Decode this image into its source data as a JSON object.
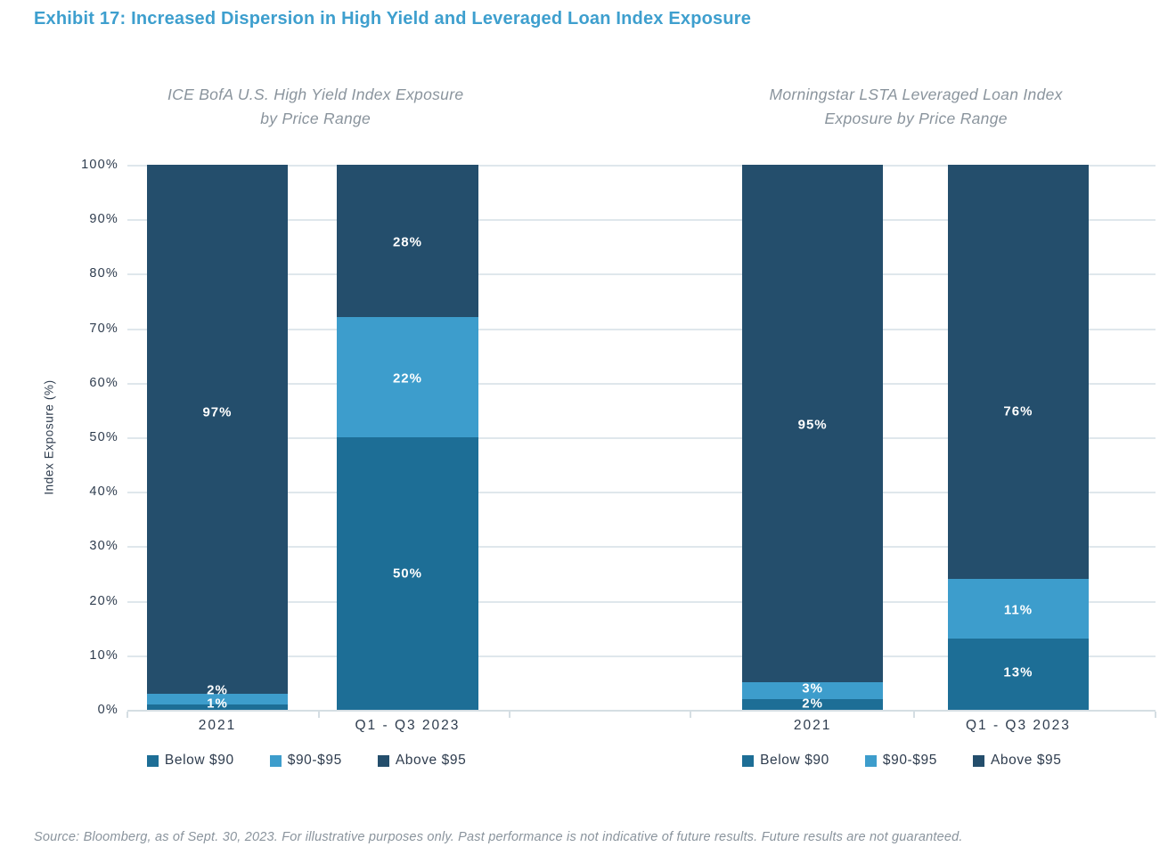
{
  "page": {
    "title": "Exhibit 17: Increased Dispersion in High Yield and Leveraged Loan Index Exposure",
    "source": "Source: Bloomberg, as of Sept. 30, 2023. For illustrative purposes only. Past performance is not indicative of future results. Future results are not guaranteed."
  },
  "colors": {
    "title": "#3E9FCE",
    "axis_text": "#2E3C4E",
    "muted_text": "#8A949D",
    "gridline": "#DFE7EC",
    "axis_line": "#D5DEE3",
    "bar_label_text": "#FFFFFF",
    "below_90": "#1D6E96",
    "90_95": "#3D9DCC",
    "above_95": "#244E6C"
  },
  "axis": {
    "ylabel": "Index Exposure (%)",
    "yticks": [
      "100%",
      "90%",
      "80%",
      "70%",
      "60%",
      "50%",
      "40%",
      "30%",
      "20%",
      "10%",
      "0%"
    ],
    "ylim": [
      0,
      100
    ]
  },
  "legend": {
    "items": [
      {
        "label": "Below $90",
        "color": "#1D6E96"
      },
      {
        "label": "$90-$95",
        "color": "#3D9DCC"
      },
      {
        "label": "Above $95",
        "color": "#244E6C"
      }
    ]
  },
  "chart_data": [
    {
      "type": "bar",
      "stacked": true,
      "title": "ICE BofA U.S. High Yield Index Exposure by Price Range",
      "title_lines": [
        "ICE BofA U.S. High Yield Index Exposure",
        "by Price Range"
      ],
      "categories": [
        "2021",
        "Q1 - Q3 2023"
      ],
      "series": [
        {
          "name": "Below $90",
          "color": "#1D6E96",
          "values": [
            1,
            50
          ],
          "labels": [
            "1%",
            "50%"
          ]
        },
        {
          "name": "$90-$95",
          "color": "#3D9DCC",
          "values": [
            2,
            22
          ],
          "labels": [
            "2%",
            "22%"
          ]
        },
        {
          "name": "Above $95",
          "color": "#244E6C",
          "values": [
            97,
            28
          ],
          "labels": [
            "97%",
            "28%"
          ]
        }
      ],
      "ylabel": "Index Exposure (%)",
      "ylim": [
        0,
        100
      ],
      "grid": true,
      "legend_position": "bottom",
      "layout": {
        "bar_x_pct": [
          1.9,
          20.4
        ],
        "bar_w_pct": 13.7,
        "subtitle_x_pct": 18.3,
        "legend_x_pct": 1.9,
        "axis_tick_x_pct": [
          0,
          18.6,
          37.2
        ],
        "label_y_pct": [
          [
            1.1,
            3.6,
            54.6
          ],
          [
            25.0,
            60.8,
            85.8
          ]
        ]
      }
    },
    {
      "type": "bar",
      "stacked": true,
      "title": "Morningstar LSTA Leveraged Loan Index Exposure by Price Range",
      "title_lines": [
        "Morningstar LSTA Leveraged Loan Index",
        "Exposure by Price Range"
      ],
      "categories": [
        "2021",
        "Q1 - Q3 2023"
      ],
      "series": [
        {
          "name": "Below $90",
          "color": "#1D6E96",
          "values": [
            2,
            13
          ],
          "labels": [
            "2%",
            "13%"
          ]
        },
        {
          "name": "$90-$95",
          "color": "#3D9DCC",
          "values": [
            3,
            11
          ],
          "labels": [
            "3%",
            "11%"
          ]
        },
        {
          "name": "Above $95",
          "color": "#244E6C",
          "values": [
            95,
            76
          ],
          "labels": [
            "95%",
            "76%"
          ]
        }
      ],
      "ylabel": "Index Exposure (%)",
      "ylim": [
        0,
        100
      ],
      "grid": true,
      "legend_position": "bottom",
      "layout": {
        "bar_x_pct": [
          59.8,
          79.8
        ],
        "bar_w_pct": 13.7,
        "subtitle_x_pct": 76.7,
        "legend_x_pct": 59.8,
        "axis_tick_x_pct": [
          54.8,
          76.5,
          100
        ],
        "label_y_pct": [
          [
            1.1,
            3.9,
            52.3
          ],
          [
            6.9,
            18.3,
            54.7
          ]
        ]
      }
    }
  ]
}
